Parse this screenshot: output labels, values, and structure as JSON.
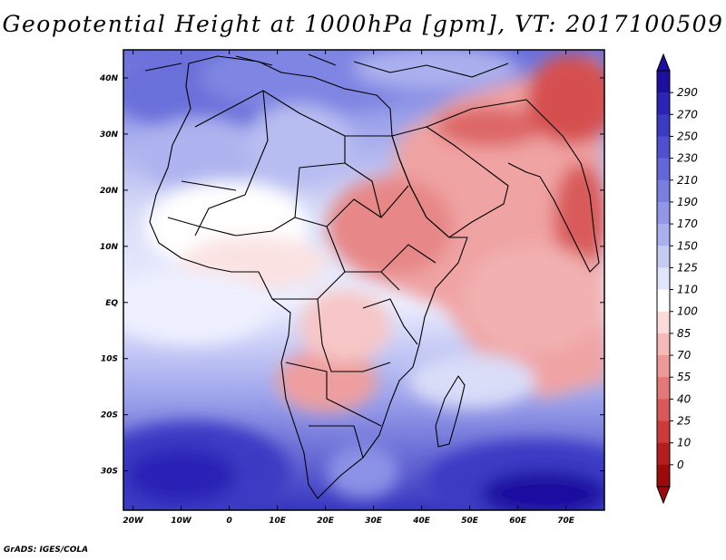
{
  "title": "Geopotential Height at 1000hPa [gpm], VT: 2017100509",
  "footer": "GrADS: IGES/COLA",
  "map": {
    "lon_labels": [
      "20W",
      "10W",
      "0",
      "10E",
      "20E",
      "30E",
      "40E",
      "50E",
      "60E",
      "70E"
    ],
    "lat_labels": [
      "40N",
      "30N",
      "20N",
      "10N",
      "EQ",
      "10S",
      "20S",
      "30S"
    ]
  },
  "colorbar": {
    "labels": [
      "290",
      "270",
      "250",
      "230",
      "210",
      "190",
      "170",
      "150",
      "125",
      "110",
      "100",
      "85",
      "70",
      "55",
      "40",
      "25",
      "10",
      "0"
    ],
    "colors": [
      "#1c0fa0",
      "#2b24b6",
      "#3a3ac4",
      "#4f50d0",
      "#6467d8",
      "#7a7ee0",
      "#9196e8",
      "#aab0ee",
      "#c6cbf4",
      "#e1e4fa",
      "#ffffff",
      "#fbdada",
      "#f6b9b9",
      "#ee9898",
      "#e47777",
      "#d95858",
      "#cc3a3a",
      "#b51e1e",
      "#9c0a0a"
    ]
  },
  "chart_data": {
    "type": "heatmap",
    "title": "Geopotential Height at 1000hPa [gpm], VT: 2017100509",
    "xlabel": "",
    "ylabel": "",
    "x_range": [
      -22,
      78
    ],
    "y_range": [
      -37,
      45
    ],
    "x_ticks": [
      "20W",
      "10W",
      "0",
      "10E",
      "20E",
      "30E",
      "40E",
      "50E",
      "60E",
      "70E"
    ],
    "y_ticks": [
      "40N",
      "30N",
      "20N",
      "10N",
      "EQ",
      "10S",
      "20S",
      "30S"
    ],
    "colorbar_levels": [
      0,
      10,
      25,
      40,
      55,
      70,
      85,
      100,
      110,
      125,
      150,
      170,
      190,
      210,
      230,
      250,
      270,
      290
    ]
  }
}
